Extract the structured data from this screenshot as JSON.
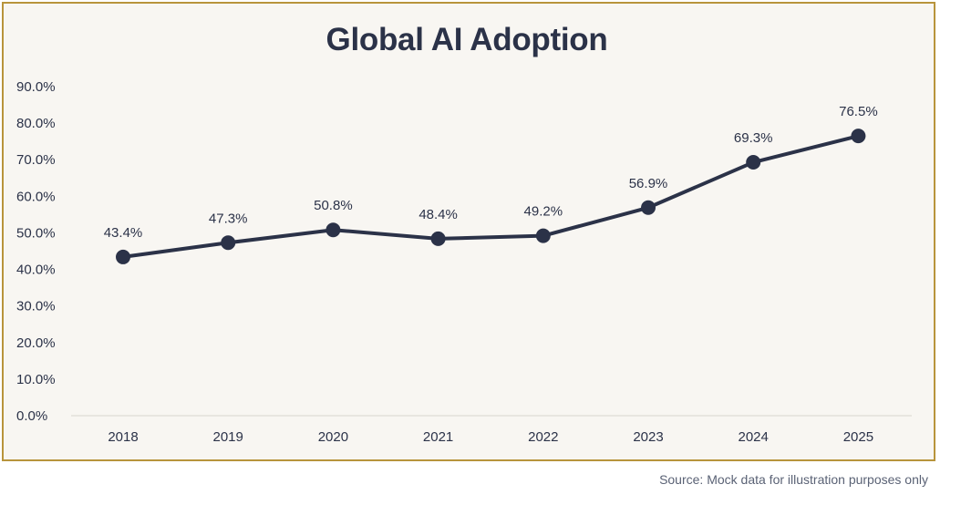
{
  "chart_data": {
    "type": "line",
    "title": "Global AI Adoption",
    "xlabel": "",
    "ylabel": "",
    "categories": [
      "2018",
      "2019",
      "2020",
      "2021",
      "2022",
      "2023",
      "2024",
      "2025"
    ],
    "series": [
      {
        "values": [
          43.4,
          47.3,
          50.8,
          48.4,
          49.2,
          56.9,
          69.3,
          76.5
        ]
      }
    ],
    "data_labels": [
      "43.4%",
      "47.3%",
      "50.8%",
      "48.4%",
      "49.2%",
      "56.9%",
      "69.3%",
      "76.5%"
    ],
    "yticks": [
      "0.0%",
      "10.0%",
      "20.0%",
      "30.0%",
      "40.0%",
      "50.0%",
      "60.0%",
      "70.0%",
      "80.0%",
      "90.0%"
    ],
    "ylim": [
      0,
      90
    ],
    "grid": false,
    "legend": "none",
    "colors": {
      "line": "#2b3248",
      "marker": "#2b3248",
      "background": "#f8f6f2",
      "border": "#b8943c"
    }
  },
  "footer": {
    "source": "Source: Mock data for illustration purposes only"
  }
}
